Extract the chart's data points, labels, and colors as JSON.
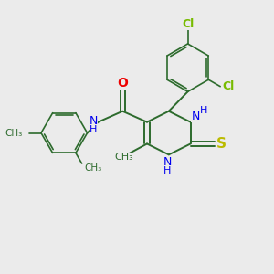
{
  "background_color": "#ebebeb",
  "bond_color": "#2d6b2d",
  "N_color": "#0000ee",
  "O_color": "#ee0000",
  "S_color": "#bbbb00",
  "Cl_color": "#77bb00",
  "figsize": [
    3.0,
    3.0
  ],
  "dpi": 100,
  "xlim": [
    0,
    10
  ],
  "ylim": [
    0,
    10
  ]
}
